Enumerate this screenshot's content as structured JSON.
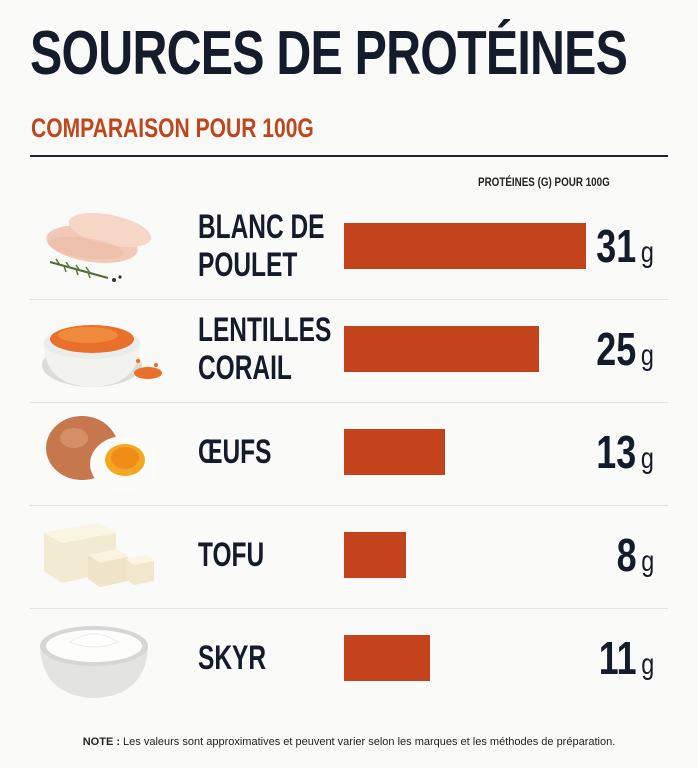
{
  "title": "SOURCES DE PROTÉINES",
  "subtitle": "COMPARAISON POUR 100G",
  "note_label": "NOTE :",
  "note_text": " Les valeurs sont approximatives et peuvent varier selon les marques et les méthodes de préparation.",
  "chart_data": {
    "type": "bar",
    "orientation": "horizontal",
    "ylabel": "PROTÉINES (G) POUR 100G",
    "unit": "g",
    "xlim": [
      0,
      31
    ],
    "grid": false,
    "categories": [
      "BLANC DE\nPOULET",
      "LENTILLES\nCORAIL",
      "ŒUFS",
      "TOFU",
      "SKYR"
    ],
    "values": [
      31,
      25,
      13,
      8,
      11
    ],
    "bar_color": "#c3441c"
  },
  "icons": [
    "chicken-breast-icon",
    "red-lentils-bowl-icon",
    "egg-icon",
    "tofu-cubes-icon",
    "skyr-bowl-icon"
  ]
}
